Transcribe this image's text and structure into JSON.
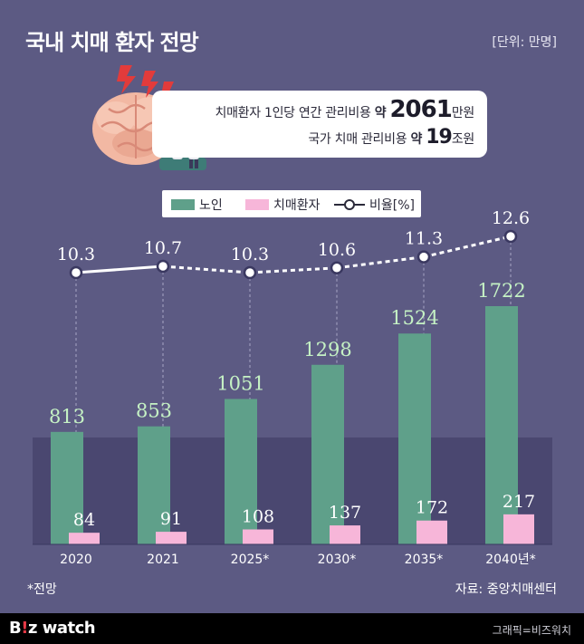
{
  "title": "국내 치매 환자 전망",
  "unit": "[단위: 만명]",
  "info": {
    "line1_prefix": "치매환자 1인당 연간 관리비용",
    "line1_mid": "약",
    "line1_value": "2061",
    "line1_suffix": "만원",
    "line2_prefix": "국가 치매 관리비용",
    "line2_mid": "약",
    "line2_value": "19",
    "line2_suffix": "조원"
  },
  "legend": {
    "elderly": "노인",
    "patients": "치매환자",
    "ratio": "비율[%]"
  },
  "colors": {
    "elderly": "#5fa08a",
    "patients": "#f7b6d9",
    "line": "#ffffff",
    "elderly_label": "#c5f2c4"
  },
  "chart_data": {
    "type": "bar",
    "categories": [
      "2020",
      "2021",
      "2025*",
      "2030*",
      "2035*",
      "2040년*"
    ],
    "series": [
      {
        "name": "노인",
        "values": [
          813,
          853,
          1051,
          1298,
          1524,
          1722
        ]
      },
      {
        "name": "치매환자",
        "values": [
          84,
          91,
          108,
          137,
          172,
          217
        ]
      },
      {
        "name": "비율[%]",
        "type": "line",
        "values": [
          10.3,
          10.7,
          10.3,
          10.6,
          11.3,
          12.6
        ],
        "style": [
          "solid",
          "dashed",
          "dashed",
          "dashed",
          "dashed"
        ]
      }
    ],
    "ylim": [
      0,
      2200
    ]
  },
  "footnote": "*전망",
  "source": "자료: 중앙치매센터",
  "footer": {
    "logo_b": "B",
    "logo_i": "!",
    "logo_rest": "z watch",
    "credit": "그래픽=비즈워치"
  }
}
